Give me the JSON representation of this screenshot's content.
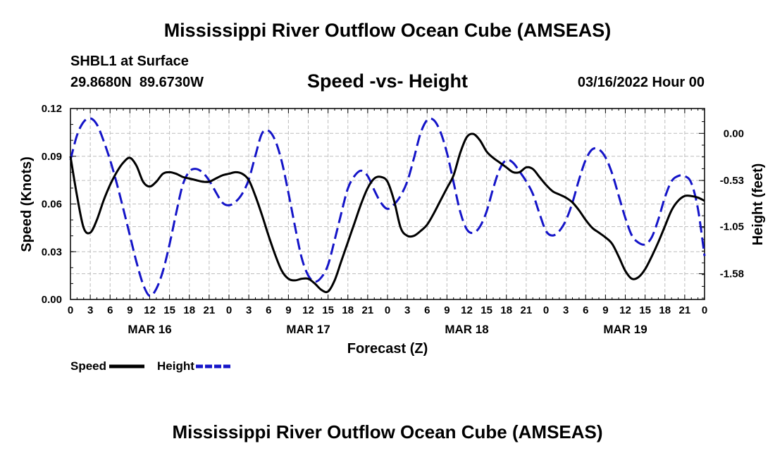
{
  "page": {
    "title": "Mississippi River Outflow Ocean Cube (AMSEAS)",
    "footer_title": "Mississippi River Outflow Ocean Cube (AMSEAS)",
    "station": "SHBL1 at Surface",
    "location": "29.8680N  89.6730W",
    "datetime": "03/16/2022 Hour 00"
  },
  "legend": {
    "speed_label": "Speed",
    "height_label": "Height"
  },
  "colors": {
    "speed": "#000000",
    "height": "#1414c8",
    "grid": "#bdbdbd"
  },
  "chart_data": {
    "type": "line",
    "title": "Speed -vs- Height",
    "xlabel": "Forecast (Z)",
    "ylabel": "Speed (Knots)",
    "y2label": "Height (feet)",
    "xlim": [
      0,
      96
    ],
    "ylim": [
      0,
      0.12
    ],
    "y2lim": [
      -1.87,
      0.28
    ],
    "yticks": [
      0.0,
      0.03,
      0.06,
      0.09,
      0.12
    ],
    "ytick_labels": [
      "0.00",
      "0.03",
      "0.06",
      "0.09",
      "0.12"
    ],
    "y2ticks": [
      0.0,
      -0.53,
      -1.05,
      -1.58
    ],
    "y2tick_labels": [
      "0.00",
      "-0.53",
      "-1.05",
      "-1.58"
    ],
    "x_tick_hours": [
      0,
      3,
      6,
      9,
      12,
      15,
      18,
      21,
      24,
      27,
      30,
      33,
      36,
      39,
      42,
      45,
      48,
      51,
      54,
      57,
      60,
      63,
      66,
      69,
      72,
      75,
      78,
      81,
      84,
      87,
      90,
      93,
      96
    ],
    "x_tick_labels": [
      "0",
      "3",
      "6",
      "9",
      "12",
      "15",
      "18",
      "21",
      "0",
      "3",
      "6",
      "9",
      "12",
      "15",
      "18",
      "21",
      "0",
      "3",
      "6",
      "9",
      "12",
      "15",
      "18",
      "21",
      "0",
      "3",
      "6",
      "9",
      "12",
      "15",
      "18",
      "21",
      "0"
    ],
    "date_labels": [
      {
        "hour": 12,
        "label": "MAR 16"
      },
      {
        "hour": 36,
        "label": "MAR 17"
      },
      {
        "hour": 60,
        "label": "MAR 18"
      },
      {
        "hour": 84,
        "label": "MAR 19"
      }
    ],
    "series": [
      {
        "name": "Speed",
        "axis": "left",
        "style": "solid",
        "x": [
          0,
          1,
          2,
          3,
          4,
          5,
          6,
          7,
          8,
          9,
          10,
          11,
          12,
          13,
          14,
          15,
          16,
          17,
          18,
          19,
          20,
          21,
          22,
          23,
          24,
          25,
          26,
          27,
          28,
          29,
          30,
          31,
          32,
          33,
          34,
          35,
          36,
          37,
          38,
          39,
          40,
          41,
          42,
          43,
          44,
          45,
          46,
          47,
          48,
          49,
          50,
          51,
          52,
          53,
          54,
          55,
          56,
          57,
          58,
          59,
          60,
          61,
          62,
          63,
          64,
          65,
          66,
          67,
          68,
          69,
          70,
          71,
          72,
          73,
          74,
          75,
          76,
          77,
          78,
          79,
          80,
          81,
          82,
          83,
          84,
          85,
          86,
          87,
          88,
          89,
          90,
          91,
          92,
          93,
          94,
          95,
          96
        ],
        "values": [
          0.09,
          0.065,
          0.045,
          0.042,
          0.05,
          0.062,
          0.072,
          0.08,
          0.086,
          0.089,
          0.084,
          0.074,
          0.071,
          0.074,
          0.079,
          0.08,
          0.079,
          0.077,
          0.076,
          0.075,
          0.074,
          0.074,
          0.076,
          0.078,
          0.079,
          0.08,
          0.079,
          0.075,
          0.065,
          0.053,
          0.04,
          0.028,
          0.018,
          0.013,
          0.012,
          0.013,
          0.013,
          0.01,
          0.006,
          0.005,
          0.012,
          0.024,
          0.036,
          0.048,
          0.06,
          0.07,
          0.076,
          0.077,
          0.074,
          0.062,
          0.045,
          0.04,
          0.04,
          0.043,
          0.047,
          0.054,
          0.062,
          0.07,
          0.078,
          0.092,
          0.102,
          0.104,
          0.1,
          0.093,
          0.089,
          0.086,
          0.083,
          0.08,
          0.08,
          0.083,
          0.082,
          0.077,
          0.072,
          0.068,
          0.066,
          0.064,
          0.061,
          0.056,
          0.05,
          0.045,
          0.042,
          0.039,
          0.035,
          0.027,
          0.018,
          0.013,
          0.014,
          0.019,
          0.027,
          0.036,
          0.046,
          0.056,
          0.062,
          0.065,
          0.065,
          0.064,
          0.062
        ]
      },
      {
        "name": "Height",
        "axis": "right",
        "style": "dashed",
        "x": [
          0,
          1,
          2,
          3,
          4,
          5,
          6,
          7,
          8,
          9,
          10,
          11,
          12,
          13,
          14,
          15,
          16,
          17,
          18,
          19,
          20,
          21,
          22,
          23,
          24,
          25,
          26,
          27,
          28,
          29,
          30,
          31,
          32,
          33,
          34,
          35,
          36,
          37,
          38,
          39,
          40,
          41,
          42,
          43,
          44,
          45,
          46,
          47,
          48,
          49,
          50,
          51,
          52,
          53,
          54,
          55,
          56,
          57,
          58,
          59,
          60,
          61,
          62,
          63,
          64,
          65,
          66,
          67,
          68,
          69,
          70,
          71,
          72,
          73,
          74,
          75,
          76,
          77,
          78,
          79,
          80,
          81,
          82,
          83,
          84,
          85,
          86,
          87,
          88,
          89,
          90,
          91,
          92,
          93,
          94,
          95,
          96
        ],
        "values": [
          -0.3,
          -0.02,
          0.13,
          0.17,
          0.1,
          -0.08,
          -0.3,
          -0.56,
          -0.85,
          -1.15,
          -1.45,
          -1.7,
          -1.83,
          -1.75,
          -1.55,
          -1.25,
          -0.9,
          -0.58,
          -0.43,
          -0.4,
          -0.44,
          -0.53,
          -0.66,
          -0.78,
          -0.81,
          -0.77,
          -0.68,
          -0.52,
          -0.25,
          0.0,
          0.03,
          -0.08,
          -0.32,
          -0.67,
          -1.05,
          -1.4,
          -1.6,
          -1.67,
          -1.62,
          -1.48,
          -1.2,
          -0.9,
          -0.62,
          -0.48,
          -0.42,
          -0.48,
          -0.64,
          -0.78,
          -0.85,
          -0.8,
          -0.7,
          -0.54,
          -0.28,
          0.0,
          0.15,
          0.15,
          0.02,
          -0.22,
          -0.55,
          -0.88,
          -1.08,
          -1.12,
          -1.05,
          -0.88,
          -0.62,
          -0.4,
          -0.3,
          -0.33,
          -0.43,
          -0.54,
          -0.68,
          -0.9,
          -1.1,
          -1.15,
          -1.1,
          -0.98,
          -0.78,
          -0.52,
          -0.3,
          -0.18,
          -0.18,
          -0.27,
          -0.45,
          -0.7,
          -0.95,
          -1.15,
          -1.23,
          -1.25,
          -1.17,
          -0.97,
          -0.72,
          -0.54,
          -0.48,
          -0.48,
          -0.56,
          -0.85,
          -1.38
        ]
      }
    ]
  }
}
